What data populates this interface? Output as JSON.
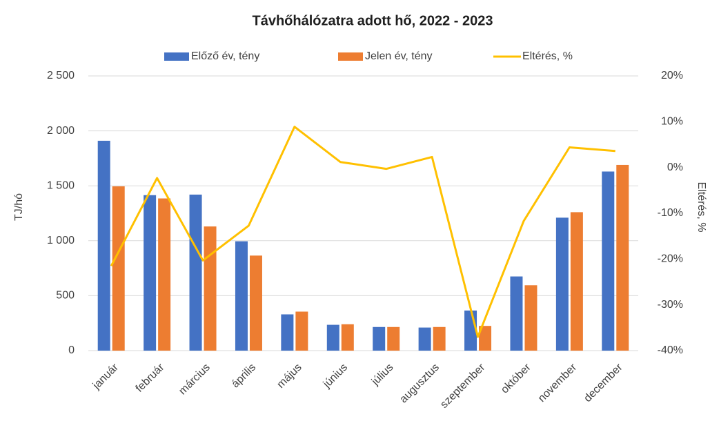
{
  "chart_data": {
    "type": "bar",
    "title": "Távhőhálózatra adott hő, 2022 - 2023",
    "y_label": "TJ/hó",
    "y2_label": "Eltérés, %",
    "categories": [
      "január",
      "február",
      "március",
      "április",
      "május",
      "június",
      "július",
      "augusztus",
      "szeptember",
      "október",
      "november",
      "december"
    ],
    "series": [
      {
        "name": "Előző év, tény",
        "color": "#4472c4",
        "type": "bar",
        "values": [
          1910,
          1415,
          1420,
          995,
          330,
          235,
          215,
          210,
          365,
          675,
          1210,
          1630
        ]
      },
      {
        "name": "Jelen év, tény",
        "color": "#ed7d31",
        "type": "bar",
        "values": [
          1495,
          1385,
          1130,
          865,
          355,
          240,
          215,
          215,
          225,
          595,
          1260,
          1690
        ]
      },
      {
        "name": "Eltérés, %",
        "color": "#ffc000",
        "type": "line",
        "axis": "y2",
        "values": [
          -21.5,
          -2.3,
          -20.3,
          -12.7,
          8.9,
          1.2,
          -0.3,
          2.3,
          -37,
          -11.7,
          4.4,
          3.6
        ]
      }
    ],
    "ylim": [
      0,
      2500
    ],
    "yticks": [
      0,
      500,
      {
        "value": 1000,
        "label": "1 000"
      },
      {
        "value": 1500,
        "label": "1 500"
      },
      {
        "value": 2000,
        "label": "2 000"
      },
      {
        "value": 2500,
        "label": "2 500"
      }
    ],
    "y2lim": [
      -40,
      20
    ],
    "y2ticks": [
      {
        "value": -40,
        "label": "-40%"
      },
      {
        "value": -30,
        "label": "-30%"
      },
      {
        "value": -20,
        "label": "-20%"
      },
      {
        "value": -10,
        "label": "-10%"
      },
      {
        "value": 0,
        "label": "0%"
      },
      {
        "value": 10,
        "label": "10%"
      },
      {
        "value": 20,
        "label": "20%"
      }
    ],
    "grid": true,
    "legend": "top"
  }
}
